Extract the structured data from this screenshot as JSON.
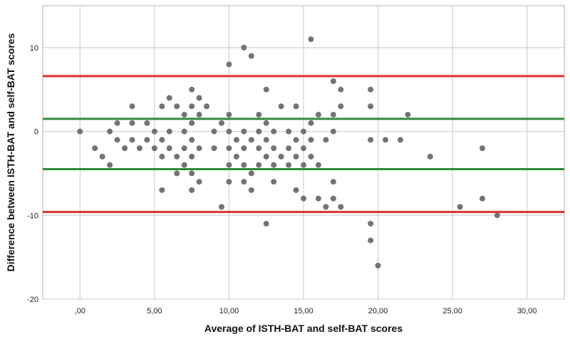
{
  "chart_data": {
    "type": "scatter",
    "xlabel": "Average of ISTH-BAT and self-BAT scores",
    "ylabel": "Difference between ISTH-BAT and self-BAT scores",
    "xlim": [
      -2.5,
      32.5
    ],
    "ylim": [
      -20,
      15
    ],
    "x_ticks": [
      0,
      5,
      10,
      15,
      20,
      25,
      30
    ],
    "x_tick_labels": [
      ",00",
      "5,00",
      "10,00",
      "15,00",
      "20,00",
      "25,00",
      "30,00"
    ],
    "y_ticks": [
      -20,
      -10,
      0,
      10
    ],
    "y_tick_labels": [
      "-20",
      "-10",
      "0",
      "10"
    ],
    "grid": true,
    "reference_lines": [
      {
        "y": 6.6,
        "color": "#e03030"
      },
      {
        "y": 1.5,
        "color": "#2e8b3a"
      },
      {
        "y": -4.5,
        "color": "#2e8b3a"
      },
      {
        "y": -9.6,
        "color": "#e03030"
      }
    ],
    "point_color": "#737373",
    "points": [
      [
        0,
        0
      ],
      [
        1,
        -2
      ],
      [
        1.5,
        -3
      ],
      [
        2,
        0
      ],
      [
        2,
        -4
      ],
      [
        2.5,
        1
      ],
      [
        2.5,
        -1
      ],
      [
        3,
        -2
      ],
      [
        3.5,
        3
      ],
      [
        3.5,
        1
      ],
      [
        3.5,
        -1
      ],
      [
        4,
        -2
      ],
      [
        4.5,
        1
      ],
      [
        4.5,
        -1
      ],
      [
        5,
        0
      ],
      [
        5,
        -2
      ],
      [
        5.5,
        3
      ],
      [
        5.5,
        -1
      ],
      [
        5.5,
        -3
      ],
      [
        5.5,
        -7
      ],
      [
        6,
        4
      ],
      [
        6,
        0
      ],
      [
        6,
        -2
      ],
      [
        6.5,
        3
      ],
      [
        6.5,
        -3
      ],
      [
        6.5,
        -5
      ],
      [
        7,
        2
      ],
      [
        7,
        0
      ],
      [
        7,
        -2
      ],
      [
        7,
        -4
      ],
      [
        7.5,
        5
      ],
      [
        7.5,
        3
      ],
      [
        7.5,
        1
      ],
      [
        7.5,
        -1
      ],
      [
        7.5,
        -3
      ],
      [
        7.5,
        -5
      ],
      [
        7.5,
        -7
      ],
      [
        8,
        4
      ],
      [
        8,
        2
      ],
      [
        8,
        -2
      ],
      [
        8,
        -6
      ],
      [
        8.5,
        3
      ],
      [
        9,
        0
      ],
      [
        9,
        -2
      ],
      [
        9.5,
        1
      ],
      [
        9.5,
        -9
      ],
      [
        10,
        8
      ],
      [
        10,
        2
      ],
      [
        10,
        0
      ],
      [
        10,
        -2
      ],
      [
        10,
        -4
      ],
      [
        10,
        -6
      ],
      [
        10.5,
        -1
      ],
      [
        10.5,
        -3
      ],
      [
        11,
        10
      ],
      [
        11,
        0
      ],
      [
        11,
        -2
      ],
      [
        11,
        -4
      ],
      [
        11,
        -6
      ],
      [
        11.5,
        9
      ],
      [
        11.5,
        -1
      ],
      [
        11.5,
        -5
      ],
      [
        11.5,
        -7
      ],
      [
        12,
        2
      ],
      [
        12,
        0
      ],
      [
        12,
        -2
      ],
      [
        12,
        -4
      ],
      [
        12.5,
        5
      ],
      [
        12.5,
        1
      ],
      [
        12.5,
        -1
      ],
      [
        12.5,
        -3
      ],
      [
        12.5,
        -11
      ],
      [
        13,
        0
      ],
      [
        13,
        -2
      ],
      [
        13,
        -4
      ],
      [
        13,
        -6
      ],
      [
        13.5,
        3
      ],
      [
        13.5,
        -3
      ],
      [
        14,
        0
      ],
      [
        14,
        -2
      ],
      [
        14,
        -4
      ],
      [
        14.5,
        3
      ],
      [
        14.5,
        -1
      ],
      [
        14.5,
        -3
      ],
      [
        14.5,
        -7
      ],
      [
        15,
        0
      ],
      [
        15,
        -2
      ],
      [
        15,
        -4
      ],
      [
        15,
        -8
      ],
      [
        15.5,
        11
      ],
      [
        15.5,
        1
      ],
      [
        15.5,
        -1
      ],
      [
        15.5,
        -3
      ],
      [
        16,
        2
      ],
      [
        16,
        -4
      ],
      [
        16,
        -8
      ],
      [
        16.5,
        -1
      ],
      [
        16.5,
        -9
      ],
      [
        17,
        6
      ],
      [
        17,
        2
      ],
      [
        17,
        0
      ],
      [
        17,
        -6
      ],
      [
        17,
        -8
      ],
      [
        17.5,
        5
      ],
      [
        17.5,
        3
      ],
      [
        17.5,
        -9
      ],
      [
        19.5,
        5
      ],
      [
        19.5,
        3
      ],
      [
        19.5,
        -1
      ],
      [
        19.5,
        -11
      ],
      [
        19.5,
        -13
      ],
      [
        20,
        -16
      ],
      [
        20.5,
        -1
      ],
      [
        21.5,
        -1
      ],
      [
        22,
        2
      ],
      [
        23.5,
        -3
      ],
      [
        25.5,
        -9
      ],
      [
        27,
        -2
      ],
      [
        27,
        -8
      ],
      [
        28,
        -10
      ]
    ]
  }
}
